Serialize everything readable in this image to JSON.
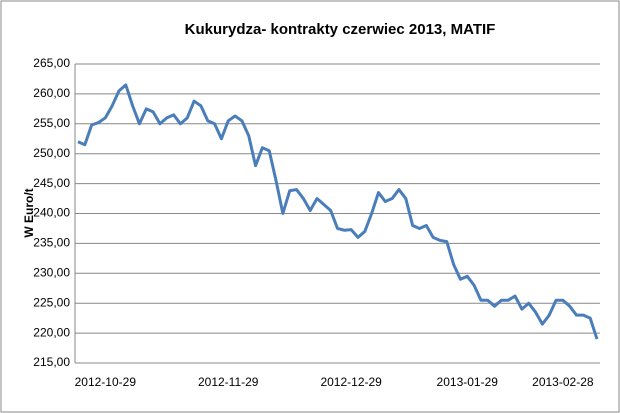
{
  "chart_data": {
    "type": "line",
    "title": "Kukurydza- kontrakty czerwiec 2013, MATIF",
    "y_label": "W Euro/t",
    "categories": [
      null,
      null,
      null,
      null,
      "2012-10-29",
      null,
      null,
      null,
      null,
      null,
      null,
      null,
      null,
      null,
      null,
      null,
      null,
      null,
      null,
      null,
      null,
      null,
      "2012-11-29",
      null,
      null,
      null,
      null,
      null,
      null,
      null,
      null,
      null,
      null,
      null,
      null,
      null,
      null,
      null,
      null,
      null,
      "2012-12-29",
      null,
      null,
      null,
      null,
      null,
      null,
      null,
      null,
      null,
      null,
      null,
      null,
      null,
      null,
      null,
      null,
      "2013-01-29",
      null,
      null,
      null,
      null,
      null,
      null,
      null,
      null,
      null,
      null,
      null,
      null,
      null,
      "2013-02-28",
      null,
      null,
      null,
      null,
      null
    ],
    "series": [
      {
        "name": "MATIF",
        "color": "#4a7ebb",
        "values": [
          252,
          251.5,
          254.8,
          255.2,
          256,
          258,
          260.5,
          261.5,
          258,
          255,
          257.5,
          257,
          255,
          256,
          256.5,
          255,
          256,
          258.8,
          258,
          255.5,
          255,
          252.5,
          255.5,
          256.3,
          255.5,
          253,
          248,
          251,
          250.5,
          245.5,
          240,
          243.8,
          244,
          242.5,
          240.5,
          242.5,
          241.5,
          240.5,
          237.5,
          237.2,
          237.3,
          236,
          237,
          240,
          243.5,
          242,
          242.5,
          244,
          242.5,
          238,
          237.5,
          238,
          236,
          235.5,
          235.3,
          231.5,
          229,
          229.5,
          228,
          225.5,
          225.5,
          224.5,
          225.5,
          225.5,
          226.2,
          224,
          225,
          223.5,
          221.5,
          223,
          225.5,
          225.5,
          224.5,
          223,
          223,
          222.5,
          219
        ]
      }
    ],
    "ylim": [
      215,
      265
    ],
    "yticks": [
      {
        "value": 215,
        "label": "215,00"
      },
      {
        "value": 220,
        "label": "220,00"
      },
      {
        "value": 225,
        "label": "225,00"
      },
      {
        "value": 230,
        "label": "230,00"
      },
      {
        "value": 235,
        "label": "235,00"
      },
      {
        "value": 240,
        "label": "240,00"
      },
      {
        "value": 245,
        "label": "245,00"
      },
      {
        "value": 250,
        "label": "250,00"
      },
      {
        "value": 255,
        "label": "255,00"
      },
      {
        "value": 260,
        "label": "260,00"
      },
      {
        "value": 265,
        "label": "265,00"
      }
    ],
    "grid": true
  }
}
